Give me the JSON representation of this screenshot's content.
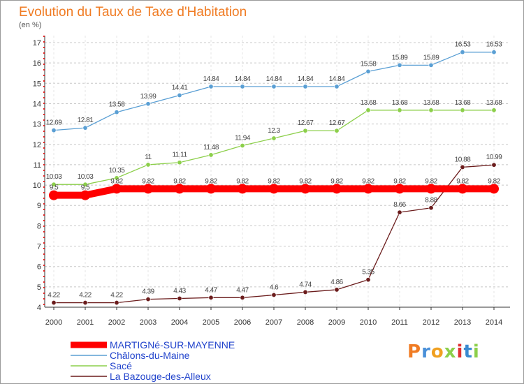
{
  "chart_data": {
    "type": "line",
    "title": "Evolution du Taux de Taxe d'Habitation",
    "subtitle": "(en %)",
    "categories": [
      "2000",
      "2001",
      "2002",
      "2003",
      "2004",
      "2005",
      "2006",
      "2007",
      "2008",
      "2009",
      "2010",
      "2011",
      "2012",
      "2013",
      "2014"
    ],
    "ylim": [
      4,
      17
    ],
    "yticks": [
      "4",
      "5",
      "6",
      "7",
      "8",
      "9",
      "10",
      "11",
      "12",
      "13",
      "14",
      "15",
      "16",
      "17"
    ],
    "grid": "horizontal dashed",
    "legend_position": "bottom-left",
    "series": [
      {
        "name": "MARTIGNé-SUR-MAYENNE",
        "color": "#ff0000",
        "values": [
          9.5,
          9.5,
          9.82,
          9.82,
          9.82,
          9.82,
          9.82,
          9.82,
          9.82,
          9.82,
          9.82,
          9.82,
          9.82,
          9.82,
          9.82
        ],
        "labels": [
          "9.5",
          "9.5",
          "9.82",
          "9.82",
          "9.82",
          "9.82",
          "9.82",
          "9.82",
          "9.82",
          "9.82",
          "9.82",
          "9.82",
          "9.82",
          "9.82",
          "9.82"
        ]
      },
      {
        "name": "Châlons-du-Maine",
        "color": "#5a9fd4",
        "values": [
          12.69,
          12.81,
          13.58,
          13.99,
          14.41,
          14.84,
          14.84,
          14.84,
          14.84,
          14.84,
          15.58,
          15.89,
          15.89,
          16.53,
          16.53
        ],
        "labels": [
          "12.69",
          "12.81",
          "13.58",
          "13.99",
          "14.41",
          "14.84",
          "14.84",
          "14.84",
          "14.84",
          "14.84",
          "15.58",
          "15.89",
          "15.89",
          "16.53",
          "16.53"
        ]
      },
      {
        "name": "Sacé",
        "color": "#8ccf4a",
        "values": [
          10.03,
          10.03,
          10.35,
          11,
          11.11,
          11.48,
          11.94,
          12.3,
          12.67,
          12.67,
          13.68,
          13.68,
          13.68,
          13.68,
          13.68
        ],
        "labels": [
          "10.03",
          "10.03",
          "10.35",
          "11",
          "11.11",
          "11.48",
          "11.94",
          "12.3",
          "12.67",
          "12.67",
          "13.68",
          "13.68",
          "13.68",
          "13.68",
          "13.68"
        ]
      },
      {
        "name": "La Bazouge-des-Alleux",
        "color": "#6b1c1c",
        "values": [
          4.22,
          4.22,
          4.22,
          4.39,
          4.43,
          4.47,
          4.47,
          4.6,
          4.74,
          4.86,
          5.35,
          8.66,
          8.88,
          10.88,
          10.99
        ],
        "labels": [
          "4.22",
          "4.22",
          "4.22",
          "4.39",
          "4.43",
          "4.47",
          "4.47",
          "4.6",
          "4.74",
          "4.86",
          "5.35",
          "8.66",
          "8.88",
          "10.88",
          "10.99"
        ]
      }
    ]
  },
  "logo": {
    "text": "Proxiti"
  }
}
